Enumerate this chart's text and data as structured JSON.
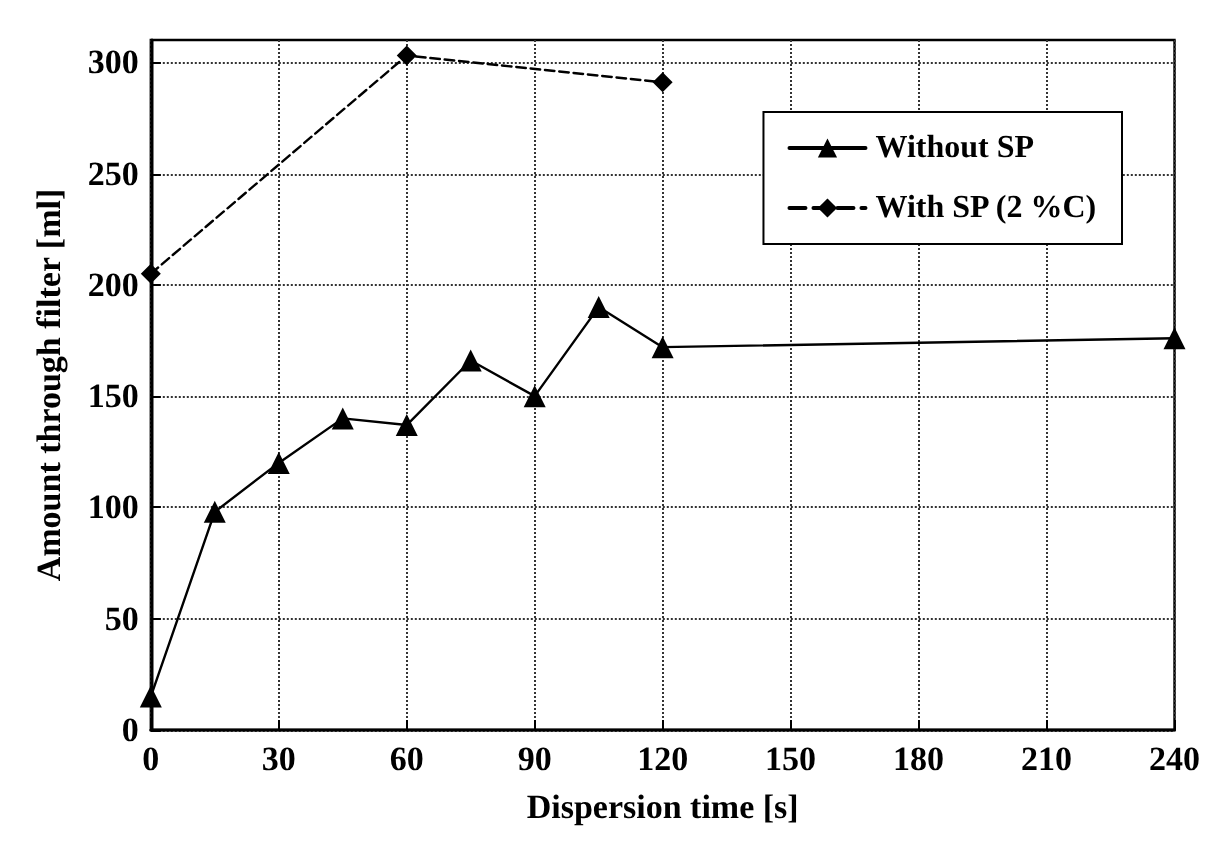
{
  "chart_data": {
    "type": "line",
    "xlabel": "Dispersion time [s]",
    "ylabel": "Amount through filter [ml]",
    "xlim": [
      0,
      240
    ],
    "xticks": [
      0,
      30,
      60,
      90,
      120,
      150,
      180,
      210,
      240
    ],
    "ylim": [
      0,
      310
    ],
    "yticks": [
      0,
      50,
      100,
      150,
      200,
      250,
      300
    ],
    "grid": true,
    "legend": "top right",
    "series": [
      {
        "name": "Without SP",
        "color": "#000000",
        "marker": "triangle",
        "line_style": "solid",
        "x": [
          0,
          15,
          30,
          45,
          60,
          75,
          90,
          105,
          120,
          240
        ],
        "values": [
          15,
          98,
          120,
          140,
          137,
          166,
          150,
          190,
          172,
          176
        ]
      },
      {
        "name": "With SP (2 %C)",
        "color": "#000000",
        "marker": "diamond",
        "line_style": "dashed",
        "x": [
          0,
          60,
          120
        ],
        "values": [
          205,
          303,
          291
        ]
      }
    ]
  }
}
